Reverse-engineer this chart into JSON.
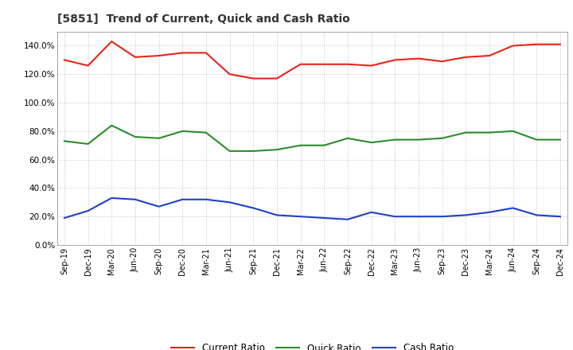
{
  "title": "[5851]  Trend of Current, Quick and Cash Ratio",
  "x_labels": [
    "Sep-19",
    "Dec-19",
    "Mar-20",
    "Jun-20",
    "Sep-20",
    "Dec-20",
    "Mar-21",
    "Jun-21",
    "Sep-21",
    "Dec-21",
    "Mar-22",
    "Jun-22",
    "Sep-22",
    "Dec-22",
    "Mar-23",
    "Jun-23",
    "Sep-23",
    "Dec-23",
    "Mar-24",
    "Jun-24",
    "Sep-24",
    "Dec-24"
  ],
  "current_ratio": [
    130,
    126,
    143,
    132,
    133,
    135,
    135,
    120,
    117,
    117,
    127,
    127,
    127,
    126,
    130,
    131,
    129,
    132,
    133,
    140,
    141,
    141
  ],
  "quick_ratio": [
    73,
    71,
    84,
    76,
    75,
    80,
    79,
    66,
    66,
    67,
    70,
    70,
    75,
    72,
    74,
    74,
    75,
    79,
    79,
    80,
    74,
    74
  ],
  "cash_ratio": [
    19,
    24,
    33,
    32,
    27,
    32,
    32,
    30,
    26,
    21,
    20,
    19,
    18,
    23,
    20,
    20,
    20,
    21,
    23,
    26,
    21,
    20
  ],
  "current_color": "#e8231a",
  "quick_color": "#2e8b2e",
  "cash_color": "#1e40c8",
  "bg_color": "#ffffff",
  "grid_color": "#c0c0c0",
  "ylim": [
    0,
    150
  ],
  "yticks": [
    0,
    20,
    40,
    60,
    80,
    100,
    120,
    140
  ],
  "legend_labels": [
    "Current Ratio",
    "Quick Ratio",
    "Cash Ratio"
  ]
}
